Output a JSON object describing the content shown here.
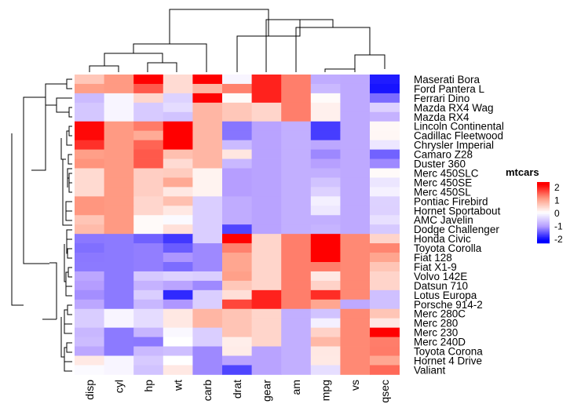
{
  "chart_data": {
    "type": "heatmap",
    "title": "",
    "legend": {
      "title": "mtcars",
      "ticks": [
        2,
        1,
        0,
        -1,
        -2
      ],
      "tick_labels": [
        "2",
        "1",
        "0",
        "-1",
        "-2"
      ],
      "placement": "right"
    },
    "colors": {
      "low": "#0000ff",
      "mid": "#ffffff",
      "high": "#ff0000",
      "low_soft": "#b49cff",
      "high_soft": "#ff9c84"
    },
    "columns": [
      "disp",
      "cyl",
      "hp",
      "wt",
      "carb",
      "drat",
      "gear",
      "am",
      "mpg",
      "vs",
      "qsec"
    ],
    "rows": [
      "Maserati Bora",
      "Ford Pantera L",
      "Ferrari Dino",
      "Mazda RX4 Wag",
      "Mazda RX4",
      "Lincoln Continental",
      "Cadillac Fleetwood",
      "Chrysler Imperial",
      "Camaro Z28",
      "Duster 360",
      "Merc 450SLC",
      "Merc 450SE",
      "Merc 450SL",
      "Pontiac Firebird",
      "Hornet Sportabout",
      "AMC Javelin",
      "Dodge Challenger",
      "Honda Civic",
      "Toyota Corolla",
      "Fiat 128",
      "Fiat X1-9",
      "Volvo 142E",
      "Datsun 710",
      "Lotus Europa",
      "Porsche 914-2",
      "Merc 280C",
      "Merc 280",
      "Merc 230",
      "Merc 240D",
      "Toyota Corona",
      "Hornet 4 Drive",
      "Valiant"
    ],
    "values": [
      [
        0.57,
        1.01,
        2.75,
        0.36,
        3.21,
        -0.1,
        1.78,
        1.19,
        -0.84,
        -0.87,
        -1.82
      ],
      [
        0.97,
        1.01,
        1.43,
        0.36,
        0.74,
        1.17,
        1.78,
        1.19,
        -0.71,
        -0.87,
        -1.87
      ],
      [
        -0.69,
        -0.1,
        0.41,
        -0.45,
        1.98,
        0.04,
        1.78,
        1.19,
        0.04,
        -0.87,
        -1.31
      ],
      [
        -0.57,
        -0.1,
        -0.54,
        -0.35,
        0.74,
        0.57,
        0.42,
        1.19,
        0.15,
        -0.87,
        -0.46
      ],
      [
        -0.57,
        -0.1,
        -0.54,
        -0.61,
        0.74,
        0.57,
        0.42,
        1.19,
        0.15,
        -0.87,
        -0.78
      ],
      [
        1.95,
        1.01,
        1.21,
        2.26,
        0.74,
        -1.25,
        -0.93,
        -0.81,
        -1.61,
        -0.87,
        0.07
      ],
      [
        1.95,
        1.01,
        0.85,
        2.08,
        0.74,
        -1.25,
        -0.93,
        -0.81,
        -1.61,
        -0.87,
        0.08
      ],
      [
        1.69,
        1.01,
        1.36,
        2.17,
        0.74,
        -0.69,
        -0.93,
        -0.81,
        -0.89,
        -0.87,
        -0.24
      ],
      [
        0.97,
        1.01,
        1.43,
        0.64,
        0.74,
        0.25,
        -0.93,
        -0.81,
        -1.13,
        -0.87,
        -1.37
      ],
      [
        1.05,
        1.01,
        1.43,
        0.36,
        0.74,
        -0.72,
        -0.93,
        -0.81,
        -0.96,
        -0.87,
        -1.12
      ],
      [
        0.37,
        1.01,
        0.49,
        0.52,
        0.12,
        -0.98,
        -0.93,
        -0.81,
        -0.81,
        -0.87,
        0.05
      ],
      [
        0.37,
        1.01,
        0.49,
        0.87,
        0.12,
        -0.98,
        -0.93,
        -0.81,
        -0.61,
        -0.87,
        -0.25
      ],
      [
        0.37,
        1.01,
        0.49,
        0.23,
        0.12,
        -0.98,
        -0.93,
        -0.81,
        -0.46,
        -0.87,
        -0.14
      ],
      [
        1.04,
        1.01,
        0.41,
        0.64,
        -0.5,
        -0.84,
        -0.93,
        -0.81,
        -0.15,
        -0.87,
        -0.45
      ],
      [
        1.04,
        1.01,
        0.41,
        0.23,
        -0.5,
        -0.84,
        -0.93,
        -0.81,
        -0.23,
        -0.87,
        -0.46
      ],
      [
        0.59,
        1.01,
        0.05,
        -0.05,
        -0.5,
        -0.84,
        -0.93,
        -0.81,
        -0.81,
        -0.87,
        -0.31
      ],
      [
        0.69,
        1.01,
        0.05,
        0.31,
        -0.5,
        -1.56,
        -0.93,
        -0.81,
        -0.76,
        -0.87,
        -0.55
      ],
      [
        -1.23,
        -1.22,
        -1.38,
        -1.64,
        -0.5,
        2.49,
        0.42,
        1.19,
        2.04,
        1.12,
        0.43
      ],
      [
        -1.29,
        -1.22,
        -1.19,
        -1.41,
        -1.12,
        1.17,
        0.42,
        1.19,
        2.29,
        1.12,
        1.15
      ],
      [
        -1.23,
        -1.22,
        -1.19,
        -1.04,
        -1.12,
        0.9,
        0.42,
        1.19,
        2.04,
        1.12,
        0.91
      ],
      [
        -1.22,
        -1.22,
        -1.19,
        -1.31,
        -1.12,
        0.9,
        0.42,
        1.19,
        1.2,
        1.12,
        0.59
      ],
      [
        -0.89,
        -1.22,
        -0.55,
        -0.45,
        -0.5,
        0.96,
        0.42,
        1.19,
        0.22,
        1.12,
        0.43
      ],
      [
        -0.99,
        -1.22,
        -0.78,
        -0.92,
        -1.12,
        0.57,
        0.42,
        1.19,
        0.45,
        1.12,
        0.43
      ],
      [
        -1.09,
        -1.22,
        -0.49,
        -1.74,
        -0.5,
        0.32,
        1.78,
        1.19,
        1.71,
        1.12,
        -0.64
      ],
      [
        -0.89,
        -1.22,
        -0.73,
        -1.03,
        -0.5,
        1.55,
        1.78,
        1.19,
        0.9,
        -0.87,
        -0.64
      ],
      [
        -0.51,
        -0.1,
        -0.35,
        0.23,
        0.74,
        0.6,
        0.42,
        -0.81,
        -0.61,
        1.12,
        0.59
      ],
      [
        -0.51,
        -0.1,
        -0.35,
        0.23,
        0.74,
        0.6,
        0.42,
        -0.81,
        -0.15,
        1.12,
        0.23
      ],
      [
        -0.73,
        -1.22,
        -0.75,
        -0.07,
        -0.5,
        0.6,
        0.42,
        -0.81,
        0.45,
        1.12,
        2.83
      ],
      [
        -0.68,
        -1.22,
        -1.23,
        0.0,
        -0.5,
        0.17,
        0.42,
        -0.81,
        0.72,
        1.12,
        1.2
      ],
      [
        -0.89,
        -1.22,
        -0.71,
        -0.65,
        -1.12,
        0.19,
        -0.93,
        -0.81,
        0.23,
        1.12,
        1.21
      ],
      [
        0.22,
        -0.1,
        -0.54,
        -0.0,
        -1.12,
        -0.92,
        -0.93,
        -0.81,
        0.22,
        1.12,
        0.89
      ],
      [
        -0.05,
        -0.1,
        -0.61,
        0.23,
        -1.12,
        -1.56,
        -0.93,
        -0.81,
        -0.33,
        1.12,
        1.33
      ]
    ]
  }
}
